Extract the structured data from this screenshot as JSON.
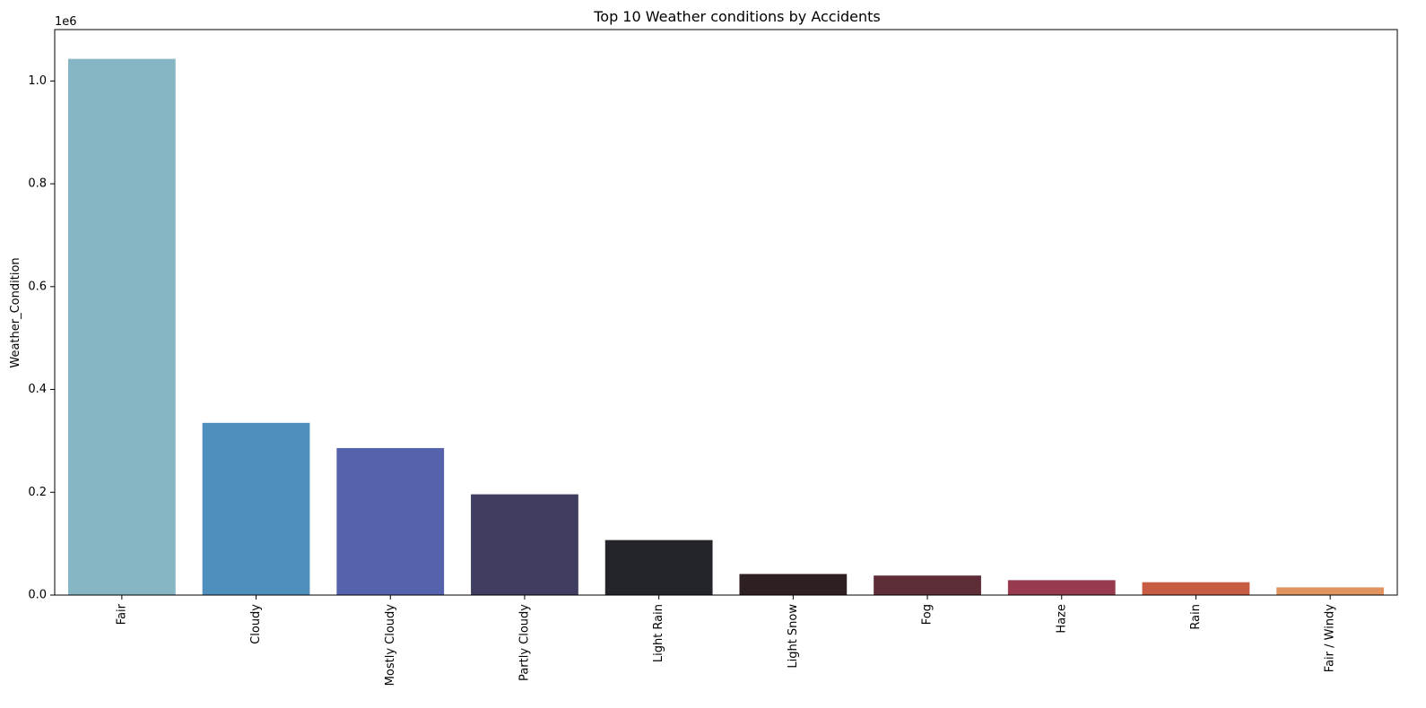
{
  "chart_data": {
    "type": "bar",
    "title": "Top 10 Weather conditions by Accidents",
    "xlabel": "",
    "ylabel": "Weather_Condition",
    "y_offset_label": "1e6",
    "categories": [
      "Fair",
      "Cloudy",
      "Mostly Cloudy",
      "Partly Cloudy",
      "Light Rain",
      "Light Snow",
      "Fog",
      "Haze",
      "Rain",
      "Fair / Windy"
    ],
    "values": [
      1043000,
      335000,
      286000,
      196000,
      107000,
      41000,
      38000,
      29000,
      25000,
      15000
    ],
    "colors": [
      "#86b6c3",
      "#4f8fbe",
      "#5563ad",
      "#3f3d60",
      "#24252a",
      "#2e2022",
      "#5e2d37",
      "#973a4d",
      "#c75c43",
      "#e19460"
    ],
    "ylim": [
      0,
      1100000
    ],
    "yticks": [
      0,
      200000,
      400000,
      600000,
      800000,
      1000000
    ],
    "ytick_labels": [
      "0.0",
      "0.2",
      "0.4",
      "0.6",
      "0.8",
      "1.0"
    ],
    "grid": false,
    "legend": "none"
  }
}
